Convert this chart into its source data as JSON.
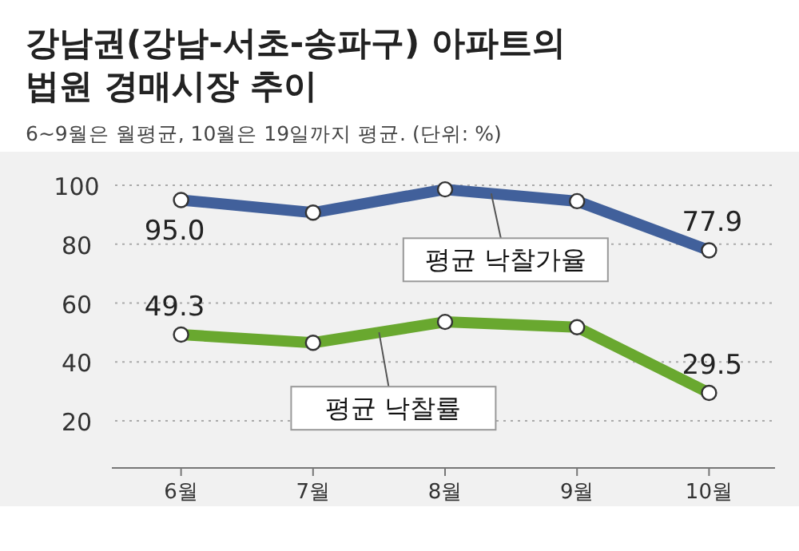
{
  "chart_data": {
    "type": "line",
    "title": "강남권(강남-서초-송파구) 아파트의\n법원 경매시장 추이",
    "subtitle": "6~9월은 월평균, 10월은 19일까지 평균. (단위: %)",
    "categories": [
      "6월",
      "7월",
      "8월",
      "9월",
      "10월"
    ],
    "series": [
      {
        "name": "평균 낙찰가율",
        "color": "#41609b",
        "values": [
          95.0,
          90.7,
          98.6,
          94.6,
          77.9
        ],
        "value_labels": [
          "95.0",
          null,
          null,
          null,
          "77.9"
        ]
      },
      {
        "name": "평균 낙찰률",
        "color": "#69a82f",
        "values": [
          49.3,
          46.5,
          53.6,
          51.8,
          29.5
        ],
        "value_labels": [
          "49.3",
          null,
          null,
          null,
          "29.5"
        ]
      }
    ],
    "ylim": [
      4,
      100
    ],
    "yticks": [
      20,
      40,
      60,
      80,
      100
    ],
    "grid": "y",
    "marker": "circle",
    "line_style": "solid"
  }
}
